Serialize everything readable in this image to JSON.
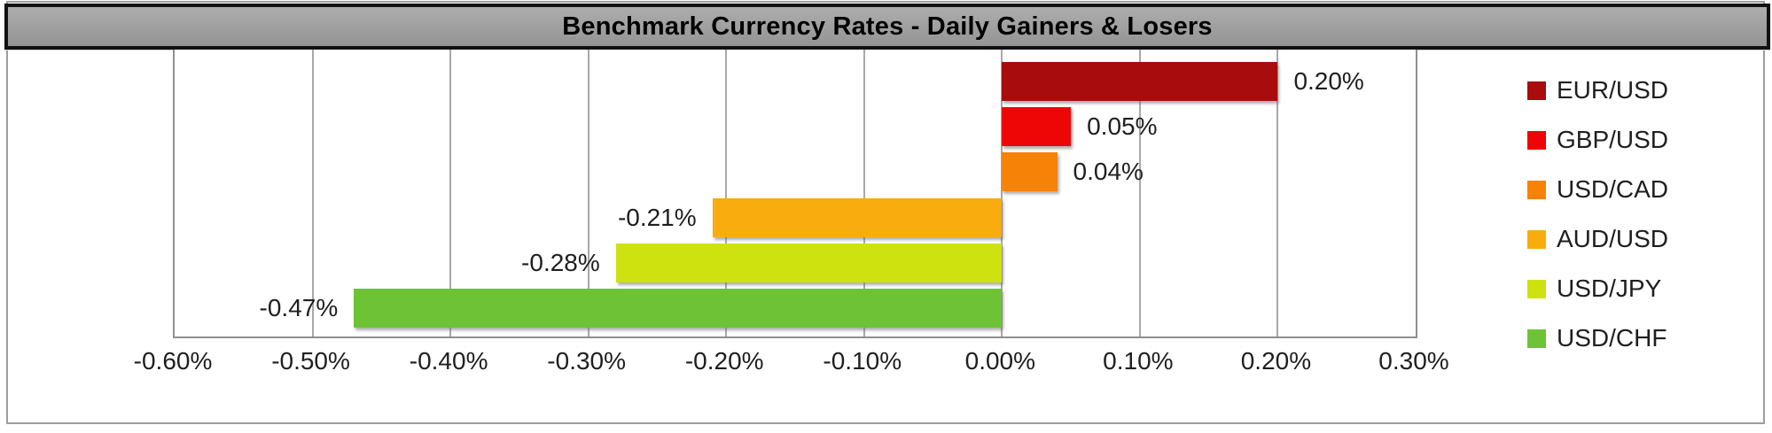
{
  "chart_data": {
    "type": "bar",
    "orientation": "horizontal",
    "title": "Benchmark Currency Rates - Daily Gainers & Losers",
    "categories": [
      "EUR/USD",
      "GBP/USD",
      "USD/CAD",
      "AUD/USD",
      "USD/JPY",
      "USD/CHF"
    ],
    "values": [
      0.2,
      0.05,
      0.04,
      -0.21,
      -0.28,
      -0.47
    ],
    "value_labels": [
      "0.20%",
      "0.05%",
      "0.04%",
      "-0.21%",
      "-0.28%",
      "-0.47%"
    ],
    "colors": [
      "#A80C0C",
      "#EE0505",
      "#F68208",
      "#F8AC0E",
      "#CEE20F",
      "#6DC335"
    ],
    "x_axis": {
      "min": -0.6,
      "max": 0.3,
      "tick_step": 0.1,
      "tick_labels": [
        "-0.60%",
        "-0.50%",
        "-0.40%",
        "-0.30%",
        "-0.20%",
        "-0.10%",
        "0.00%",
        "0.10%",
        "0.20%",
        "0.30%"
      ]
    },
    "legend": {
      "position": "right",
      "entries": [
        "EUR/USD",
        "GBP/USD",
        "USD/CAD",
        "AUD/USD",
        "USD/JPY",
        "USD/CHF"
      ]
    },
    "grid": "vertical",
    "styles": {
      "title_bar_fill": "#9c9c9c",
      "title_bar_border": "#121212",
      "frame_border": "#9d9d9d",
      "gridline_color": "#a9a9a9",
      "axis_line_color": "#8f8f8f",
      "label_color": "#1f1f1f"
    }
  }
}
